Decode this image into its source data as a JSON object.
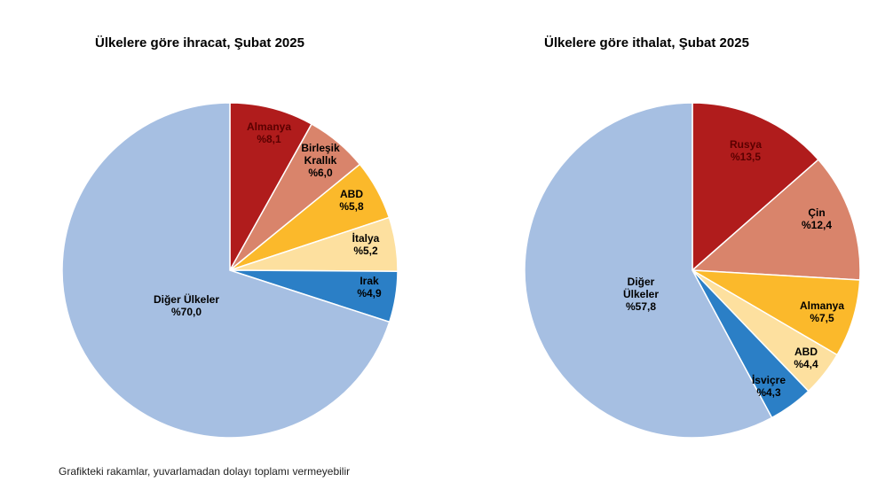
{
  "footnote": "Grafikteki rakamlar, yuvarlamadan dolayı toplamı vermeyebilir",
  "chart_data": [
    {
      "type": "pie",
      "title": "Ülkelere göre ihracat, Şubat 2025",
      "slices": [
        {
          "label": [
            "Almanya"
          ],
          "value_text": "%8,1",
          "value": 8.1,
          "color": "#b01c1c",
          "text_color": "#5a0000"
        },
        {
          "label": [
            "Birleşik",
            "Krallık"
          ],
          "value_text": "%6,0",
          "value": 6.0,
          "color": "#d9846b",
          "text_color": "#000000"
        },
        {
          "label": [
            "ABD"
          ],
          "value_text": "%5,8",
          "value": 5.8,
          "color": "#fbb92b",
          "text_color": "#000000"
        },
        {
          "label": [
            "İtalya"
          ],
          "value_text": "%5,2",
          "value": 5.2,
          "color": "#fde09f",
          "text_color": "#000000"
        },
        {
          "label": [
            "Irak"
          ],
          "value_text": "%4,9",
          "value": 4.9,
          "color": "#2b7fc6",
          "text_color": "#000000"
        },
        {
          "label": [
            "Diğer Ülkeler"
          ],
          "value_text": "%70,0",
          "value": 70.0,
          "color": "#a6bfe2",
          "text_color": "#000000"
        }
      ]
    },
    {
      "type": "pie",
      "title": "Ülkelere göre ithalat, Şubat 2025",
      "slices": [
        {
          "label": [
            "Rusya"
          ],
          "value_text": "%13,5",
          "value": 13.5,
          "color": "#b01c1c",
          "text_color": "#5a0000"
        },
        {
          "label": [
            "Çin"
          ],
          "value_text": "%12,4",
          "value": 12.4,
          "color": "#d9846b",
          "text_color": "#000000"
        },
        {
          "label": [
            "Almanya"
          ],
          "value_text": "%7,5",
          "value": 7.5,
          "color": "#fbb92b",
          "text_color": "#000000"
        },
        {
          "label": [
            "ABD"
          ],
          "value_text": "%4,4",
          "value": 4.4,
          "color": "#fde09f",
          "text_color": "#000000"
        },
        {
          "label": [
            "İsviçre"
          ],
          "value_text": "%4,3",
          "value": 4.3,
          "color": "#2b7fc6",
          "text_color": "#000000"
        },
        {
          "label": [
            "Diğer",
            "Ülkeler"
          ],
          "value_text": "%57,8",
          "value": 57.8,
          "color": "#a6bfe2",
          "text_color": "#000000"
        }
      ]
    }
  ]
}
